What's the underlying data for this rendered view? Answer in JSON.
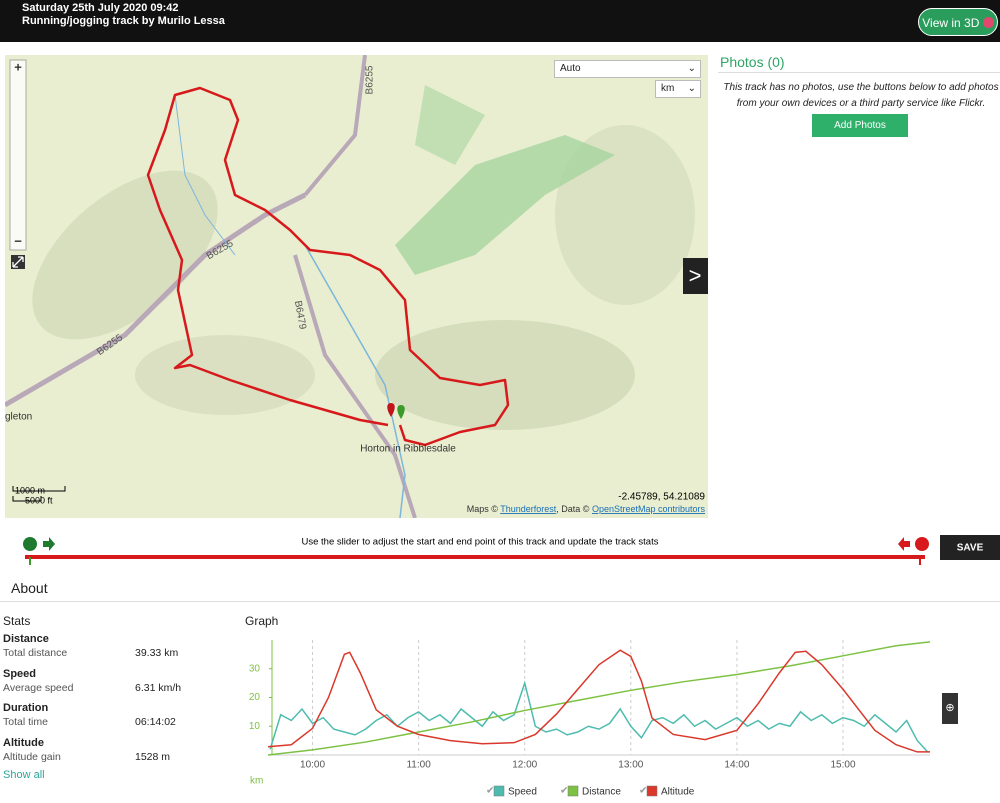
{
  "header": {
    "title": "Saturday 25th July 2020 09:42",
    "subtitle": "Running/jogging track by Murilo Lessa",
    "button": "View in 3D"
  },
  "map": {
    "zoom_select": "Auto",
    "unit_select": "km",
    "next": ">",
    "labels": [
      "B6255",
      "B6255",
      "B6255",
      "B6479",
      "Horton in Ribblesdale",
      "gleton"
    ],
    "scale": [
      "1000 m",
      "5000 ft"
    ],
    "coords": "-2.45789, 54.21089",
    "attribution": [
      "Maps ©",
      "Thunderforest",
      ", Data ©",
      "OpenStreetMap contributors"
    ]
  },
  "photos": {
    "title": "Photos (0)",
    "text": "This track has no photos, use the buttons below to add photos from your own devices or a third party service like Flickr.",
    "button": "Add Photos"
  },
  "slider": {
    "text": "Use the slider to adjust the start and end point of this track and update the track stats",
    "button": "SAVE"
  },
  "about": {
    "title": "About",
    "stats_title": "Stats",
    "stats": [
      {
        "heading": "Distance",
        "label": "Total distance",
        "value": "39.33 km"
      },
      {
        "heading": "Speed",
        "label": "Average speed",
        "value": "6.31 km/h"
      },
      {
        "heading": "Duration",
        "label": "Total time",
        "value": "06:14:02"
      },
      {
        "heading": "Altitude",
        "label": "Altitude gain",
        "value": "1528 m"
      }
    ],
    "show_all": "Show all"
  },
  "graph": {
    "title": "Graph",
    "chart_data": {
      "type": "line",
      "y_label": "km",
      "xlim": [
        9.58,
        15.82
      ],
      "xticks": [
        {
          "value": 10,
          "label": "10:00"
        },
        {
          "value": 11,
          "label": "11:00"
        },
        {
          "value": 12,
          "label": "12:00"
        },
        {
          "value": 13,
          "label": "13:00"
        },
        {
          "value": 14,
          "label": "14:00"
        },
        {
          "value": 15,
          "label": "15:00"
        }
      ],
      "ylim": [
        0,
        40
      ],
      "yticks": [
        10,
        20,
        30
      ],
      "y2lim": [
        200,
        760
      ],
      "grid": true,
      "series": [
        {
          "name": "Speed",
          "color": "#4dbcae",
          "x": [
            9.6,
            9.7,
            9.8,
            9.9,
            10.0,
            10.1,
            10.2,
            10.3,
            10.4,
            10.5,
            10.6,
            10.7,
            10.8,
            10.9,
            11.0,
            11.1,
            11.2,
            11.3,
            11.4,
            11.5,
            11.6,
            11.7,
            11.8,
            11.9,
            12.0,
            12.1,
            12.2,
            12.3,
            12.4,
            12.5,
            12.6,
            12.7,
            12.8,
            12.9,
            13.0,
            13.1,
            13.2,
            13.3,
            13.4,
            13.5,
            13.6,
            13.7,
            13.8,
            13.9,
            14.0,
            14.1,
            14.2,
            14.3,
            14.4,
            14.5,
            14.6,
            14.7,
            14.8,
            14.9,
            15.0,
            15.1,
            15.2,
            15.3,
            15.4,
            15.5,
            15.6,
            15.7,
            15.8
          ],
          "values": [
            2,
            14,
            12,
            16,
            11,
            13,
            9,
            8,
            7,
            9,
            12,
            14,
            10,
            13,
            15,
            12,
            14,
            11,
            16,
            13,
            10,
            15,
            12,
            14,
            25,
            10,
            8,
            9,
            7,
            8,
            10,
            9,
            11,
            16,
            10,
            6,
            12,
            13,
            11,
            14,
            10,
            12,
            9,
            11,
            13,
            10,
            12,
            9,
            11,
            10,
            15,
            12,
            14,
            11,
            13,
            12,
            10,
            14,
            11,
            8,
            12,
            5,
            1
          ]
        },
        {
          "name": "Distance",
          "color": "#7cc142",
          "x": [
            9.58,
            10,
            10.5,
            11,
            11.5,
            12,
            12.5,
            13,
            13.5,
            14,
            14.5,
            15,
            15.5,
            15.82
          ],
          "values": [
            0,
            1.8,
            4.5,
            8,
            11.5,
            15.5,
            19,
            22.5,
            25.5,
            28,
            31,
            34.5,
            38,
            39.33
          ]
        },
        {
          "name": "Altitude",
          "color": "#d9382b",
          "axis": "y2",
          "x": [
            9.58,
            9.8,
            10.0,
            10.15,
            10.3,
            10.35,
            10.45,
            10.6,
            10.8,
            11.0,
            11.3,
            11.6,
            11.9,
            12.1,
            12.3,
            12.5,
            12.7,
            12.9,
            13.0,
            13.1,
            13.2,
            13.4,
            13.7,
            14.0,
            14.2,
            14.4,
            14.55,
            14.65,
            14.8,
            15.0,
            15.15,
            15.3,
            15.5,
            15.7,
            15.82
          ],
          "values": [
            240,
            250,
            330,
            480,
            690,
            700,
            600,
            420,
            340,
            300,
            270,
            255,
            260,
            300,
            400,
            520,
            640,
            710,
            680,
            560,
            380,
            300,
            275,
            320,
            450,
            600,
            700,
            705,
            640,
            520,
            420,
            320,
            250,
            215,
            215
          ]
        }
      ]
    }
  }
}
